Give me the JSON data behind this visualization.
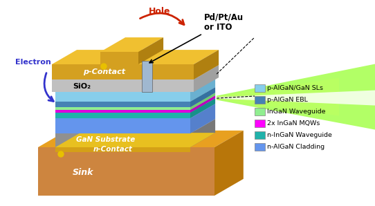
{
  "title": "",
  "legend_items": [
    {
      "label": "p-AlGaN/GaN SLs",
      "color": "#87CEEB"
    },
    {
      "label": "p-AlGaN EBL",
      "color": "#4682B4"
    },
    {
      "label": "InGaN Waveguide",
      "color": "#90EE90"
    },
    {
      "label": "2x InGaN MQWs",
      "color": "#FF00FF"
    },
    {
      "label": "n-InGaN Waveguide",
      "color": "#20B2AA"
    },
    {
      "label": "n-AlGaN Cladding",
      "color": "#6495ED"
    }
  ],
  "annotation_pd": "Pd/Pt/Au\nor ITO",
  "annotation_hole": "Hole",
  "annotation_electron": "Electron",
  "label_pcontact": "p-Contact",
  "label_sio2": "SiO₂",
  "label_gan": "GaN Substrate",
  "label_ncontact": "n-Contact",
  "label_sink": "Sink",
  "bg_color": "#FFFFFF"
}
